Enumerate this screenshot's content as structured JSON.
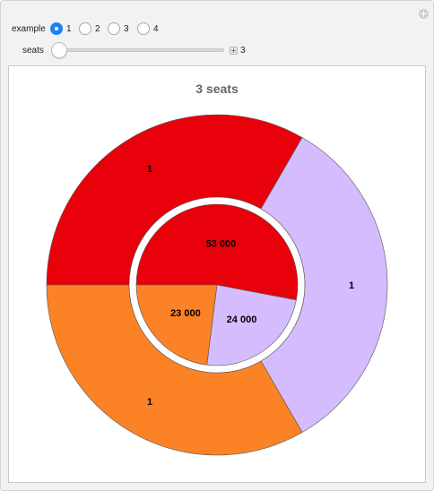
{
  "controls": {
    "example_label": "example",
    "example_options": [
      "1",
      "2",
      "3",
      "4"
    ],
    "example_selected": "1",
    "seats_label": "seats",
    "seats_value": "3",
    "seats_slider_fraction": 0
  },
  "chart_data": {
    "type": "pie",
    "title": "3 seats",
    "outer_ring": {
      "labels": [
        "1",
        "1",
        "1"
      ],
      "values": [
        1,
        1,
        1
      ],
      "colors": [
        "#e8000b",
        "#d4bcff",
        "#fb8225"
      ]
    },
    "inner_pie": {
      "labels": [
        "53 000",
        "24 000",
        "23 000"
      ],
      "values": [
        53000,
        24000,
        23000
      ],
      "colors": [
        "#e8000b",
        "#d4bcff",
        "#fb8225"
      ]
    }
  }
}
